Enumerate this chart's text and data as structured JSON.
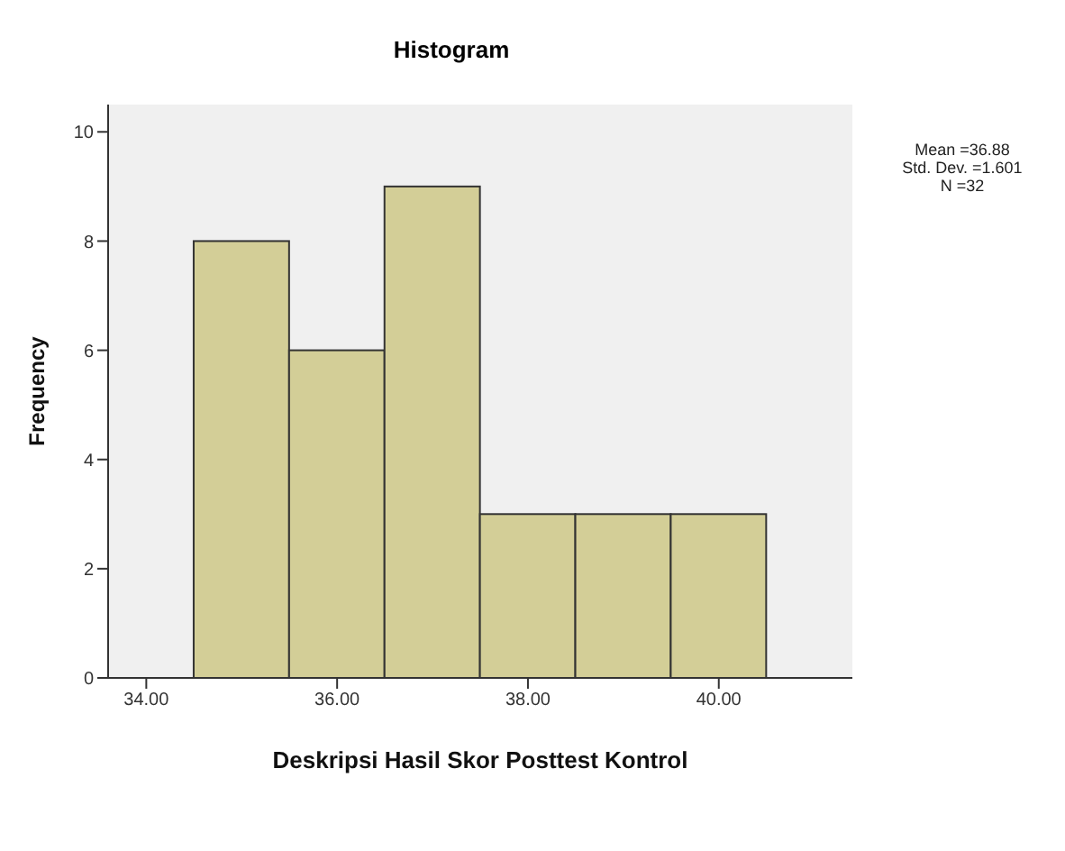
{
  "chart_data": {
    "type": "histogram",
    "title": "Histogram",
    "xlabel": "Deskripsi Hasil Skor Posttest Kontrol",
    "ylabel": "Frequency",
    "bins": [
      34.5,
      35.5,
      36.5,
      37.5,
      38.5,
      39.5,
      40.5
    ],
    "values": [
      8,
      6,
      9,
      3,
      3,
      3
    ],
    "color": "#d3ce97",
    "xlim": [
      33.6,
      41.4
    ],
    "xticks": [
      {
        "value": 34,
        "label": "34.00"
      },
      {
        "value": 36,
        "label": "36.00"
      },
      {
        "value": 38,
        "label": "38.00"
      },
      {
        "value": 40,
        "label": "40.00"
      }
    ],
    "ylim": [
      0,
      10.5
    ],
    "yticks": [
      0,
      2,
      4,
      6,
      8,
      10
    ],
    "annotations": [
      "Mean =36.88",
      "Std. Dev. =1.601",
      "N =32"
    ]
  }
}
